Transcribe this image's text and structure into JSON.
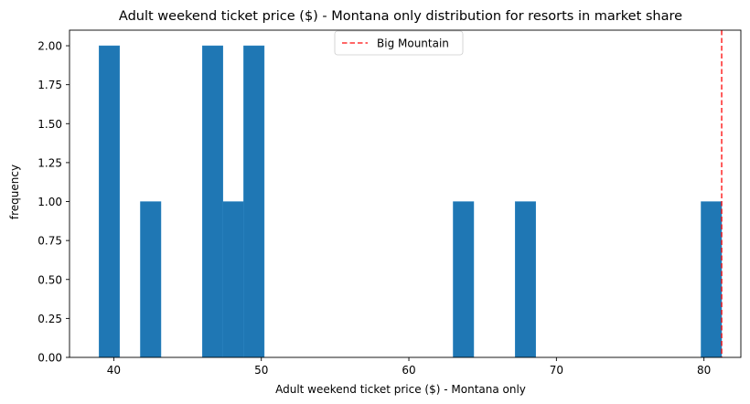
{
  "chart_data": {
    "type": "bar",
    "title": "Adult weekend ticket price ($) - Montana only distribution for resorts in market share",
    "xlabel": "Adult weekend ticket price ($) - Montana only",
    "ylabel": "frequency",
    "xlim": [
      37,
      82.5
    ],
    "ylim": [
      0,
      2.1
    ],
    "x_ticks": [
      40,
      50,
      60,
      70,
      80
    ],
    "y_ticks": [
      0.0,
      0.25,
      0.5,
      0.75,
      1.0,
      1.25,
      1.5,
      1.75,
      2.0
    ],
    "y_tick_labels": [
      "0.00",
      "0.25",
      "0.50",
      "0.75",
      "1.00",
      "1.25",
      "1.50",
      "1.75",
      "2.00"
    ],
    "bin_width": 1.4,
    "bins": [
      {
        "start": 39.0,
        "end": 40.4,
        "count": 2
      },
      {
        "start": 41.8,
        "end": 43.2,
        "count": 1
      },
      {
        "start": 46.0,
        "end": 47.4,
        "count": 2
      },
      {
        "start": 47.4,
        "end": 48.8,
        "count": 1
      },
      {
        "start": 48.8,
        "end": 50.2,
        "count": 2
      },
      {
        "start": 63.0,
        "end": 64.4,
        "count": 1
      },
      {
        "start": 67.2,
        "end": 68.6,
        "count": 1
      },
      {
        "start": 79.8,
        "end": 81.2,
        "count": 1
      }
    ],
    "bar_color": "#1f77b4",
    "reference_line": {
      "label": "Big Mountain",
      "x": 81.2,
      "color": "#ff0000",
      "style": "dashed"
    },
    "legend_position": "upper center",
    "grid": false
  }
}
